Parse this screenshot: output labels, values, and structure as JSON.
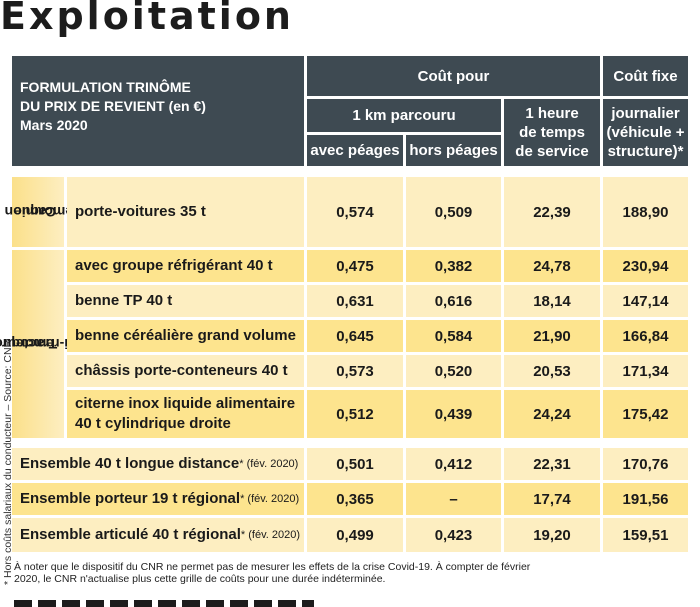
{
  "title": "Exploitation",
  "side_note": "* Hors coûts salariaux du conducteur – Source: CNR",
  "header": {
    "formulation_lines": [
      "FORMULATION TRINÔME",
      "DU PRIX DE REVIENT (en €)",
      "Mars 2020"
    ],
    "cout_pour": "Coût pour",
    "cout_fixe": "Coût fixe",
    "km": "1 km parcouru",
    "heure_lines": [
      "1 heure",
      "de temps",
      "de service"
    ],
    "journalier_lines": [
      "journalier",
      "(véhicule +",
      "structure)*"
    ],
    "avec_peages": "avec péages",
    "hors_peages": "hors péages"
  },
  "groups": {
    "camion": [
      "Camion",
      "remorque"
    ],
    "tracteur": [
      "Tracteur",
      "semi-remorque"
    ]
  },
  "rows": [
    {
      "label": "porte-voitures 35 t",
      "avec": "0,574",
      "hors": "0,509",
      "heure": "22,39",
      "fixe": "188,90"
    },
    {
      "label": "avec groupe réfrigérant 40 t",
      "avec": "0,475",
      "hors": "0,382",
      "heure": "24,78",
      "fixe": "230,94"
    },
    {
      "label": "benne TP 40 t",
      "avec": "0,631",
      "hors": "0,616",
      "heure": "18,14",
      "fixe": "147,14"
    },
    {
      "label": "benne céréalière grand volume",
      "avec": "0,645",
      "hors": "0,584",
      "heure": "21,90",
      "fixe": "166,84"
    },
    {
      "label": "châssis porte-conteneurs 40 t",
      "avec": "0,573",
      "hors": "0,520",
      "heure": "20,53",
      "fixe": "171,34"
    },
    {
      "label_lines": [
        "citerne inox liquide alimentaire",
        "40 t cylindrique droite"
      ],
      "avec": "0,512",
      "hors": "0,439",
      "heure": "24,24",
      "fixe": "175,42"
    },
    {
      "label": "Ensemble 40 t longue distance",
      "suffix": "* (fév. 2020)",
      "avec": "0,501",
      "hors": "0,412",
      "heure": "22,31",
      "fixe": "170,76"
    },
    {
      "label": "Ensemble porteur 19 t régional",
      "suffix": "* (fév. 2020)",
      "avec": "0,365",
      "hors": "–",
      "heure": "17,74",
      "fixe": "191,56"
    },
    {
      "label": "Ensemble articulé 40 t régional",
      "suffix": "* (fév. 2020)",
      "avec": "0,499",
      "hors": "0,423",
      "heure": "19,20",
      "fixe": "159,51"
    }
  ],
  "footer_lines": [
    "À noter que le dispositif du CNR ne permet pas de mesurer les effets de la crise Covid-19. À compter de février",
    "2020, le CNR n'actualise plus cette grille de coûts pour une durée indéterminée."
  ]
}
